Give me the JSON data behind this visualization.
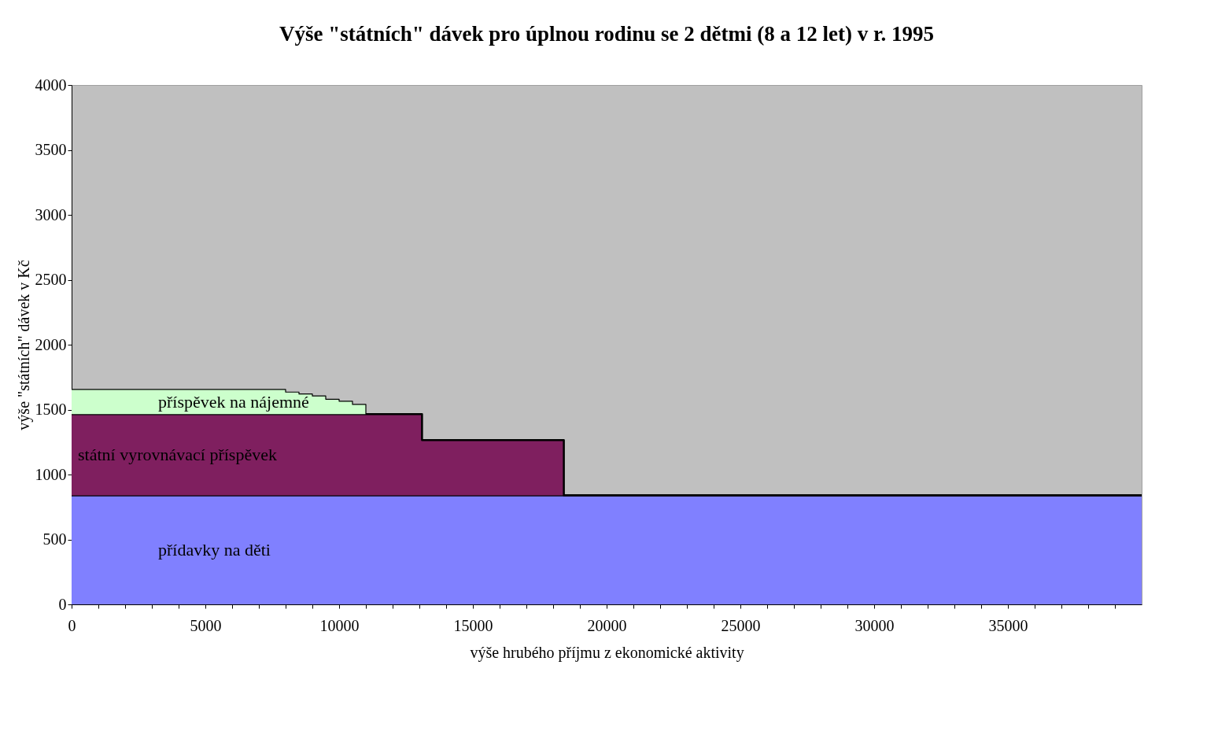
{
  "chart_data": {
    "type": "area",
    "stacked": true,
    "title": "Výše \"státních\" dávek pro úplnou rodinu se 2 dětmi (8 a 12 let) v r. 1995",
    "xlabel": "výše hrubého příjmu z ekonomické aktivity",
    "ylabel": "výše \"státních\" dávek v Kč",
    "x": [
      0,
      8000,
      8000,
      8500,
      8500,
      9000,
      9000,
      9500,
      9500,
      10000,
      10000,
      10500,
      10500,
      11000,
      11000,
      13100,
      13100,
      18400,
      18400,
      40000
    ],
    "series": [
      {
        "color": "#8080ff",
        "values": [
          840,
          840,
          840,
          840,
          840,
          840,
          840,
          840,
          840,
          840,
          840,
          840,
          840,
          840,
          840,
          840,
          840,
          840,
          840,
          840
        ]
      },
      {
        "color": "#7f1f5f",
        "values": [
          625,
          625,
          625,
          625,
          625,
          625,
          625,
          625,
          625,
          625,
          625,
          625,
          625,
          625,
          625,
          625,
          425,
          425,
          0,
          0
        ]
      },
      {
        "color": "#ccffcc",
        "values": [
          190,
          190,
          170,
          170,
          155,
          155,
          140,
          140,
          115,
          115,
          100,
          100,
          75,
          75,
          0,
          0,
          0,
          0,
          0,
          0
        ]
      }
    ],
    "annotations": [
      "přídavky na děti",
      "státní vyrovnávací příspěvek",
      "příspěvek na nájemné"
    ],
    "xlim": [
      0,
      40000
    ],
    "xticks": [
      0,
      {
        "value": 1000,
        "label": null
      },
      {
        "value": 2000,
        "label": null
      },
      {
        "value": 3000,
        "label": null
      },
      {
        "value": 4000,
        "label": null
      },
      5000,
      {
        "value": 6000,
        "label": null
      },
      {
        "value": 7000,
        "label": null
      },
      {
        "value": 8000,
        "label": null
      },
      {
        "value": 9000,
        "label": null
      },
      10000,
      {
        "value": 11000,
        "label": null
      },
      {
        "value": 12000,
        "label": null
      },
      {
        "value": 13000,
        "label": null
      },
      {
        "value": 14000,
        "label": null
      },
      15000,
      {
        "value": 16000,
        "label": null
      },
      {
        "value": 17000,
        "label": null
      },
      {
        "value": 18000,
        "label": null
      },
      {
        "value": 19000,
        "label": null
      },
      20000,
      {
        "value": 21000,
        "label": null
      },
      {
        "value": 22000,
        "label": null
      },
      {
        "value": 23000,
        "label": null
      },
      {
        "value": 24000,
        "label": null
      },
      25000,
      {
        "value": 26000,
        "label": null
      },
      {
        "value": 27000,
        "label": null
      },
      {
        "value": 28000,
        "label": null
      },
      {
        "value": 29000,
        "label": null
      },
      30000,
      {
        "value": 31000,
        "label": null
      },
      {
        "value": 32000,
        "label": null
      },
      {
        "value": 33000,
        "label": null
      },
      {
        "value": 34000,
        "label": null
      },
      35000,
      {
        "value": 36000,
        "label": null
      },
      {
        "value": 37000,
        "label": null
      },
      {
        "value": 38000,
        "label": null
      },
      {
        "value": 39000,
        "label": null
      }
    ],
    "ylim": [
      0,
      4000
    ],
    "yticks": [
      0,
      500,
      1000,
      1500,
      2000,
      2500,
      3000,
      3500,
      4000
    ],
    "grid": false
  }
}
